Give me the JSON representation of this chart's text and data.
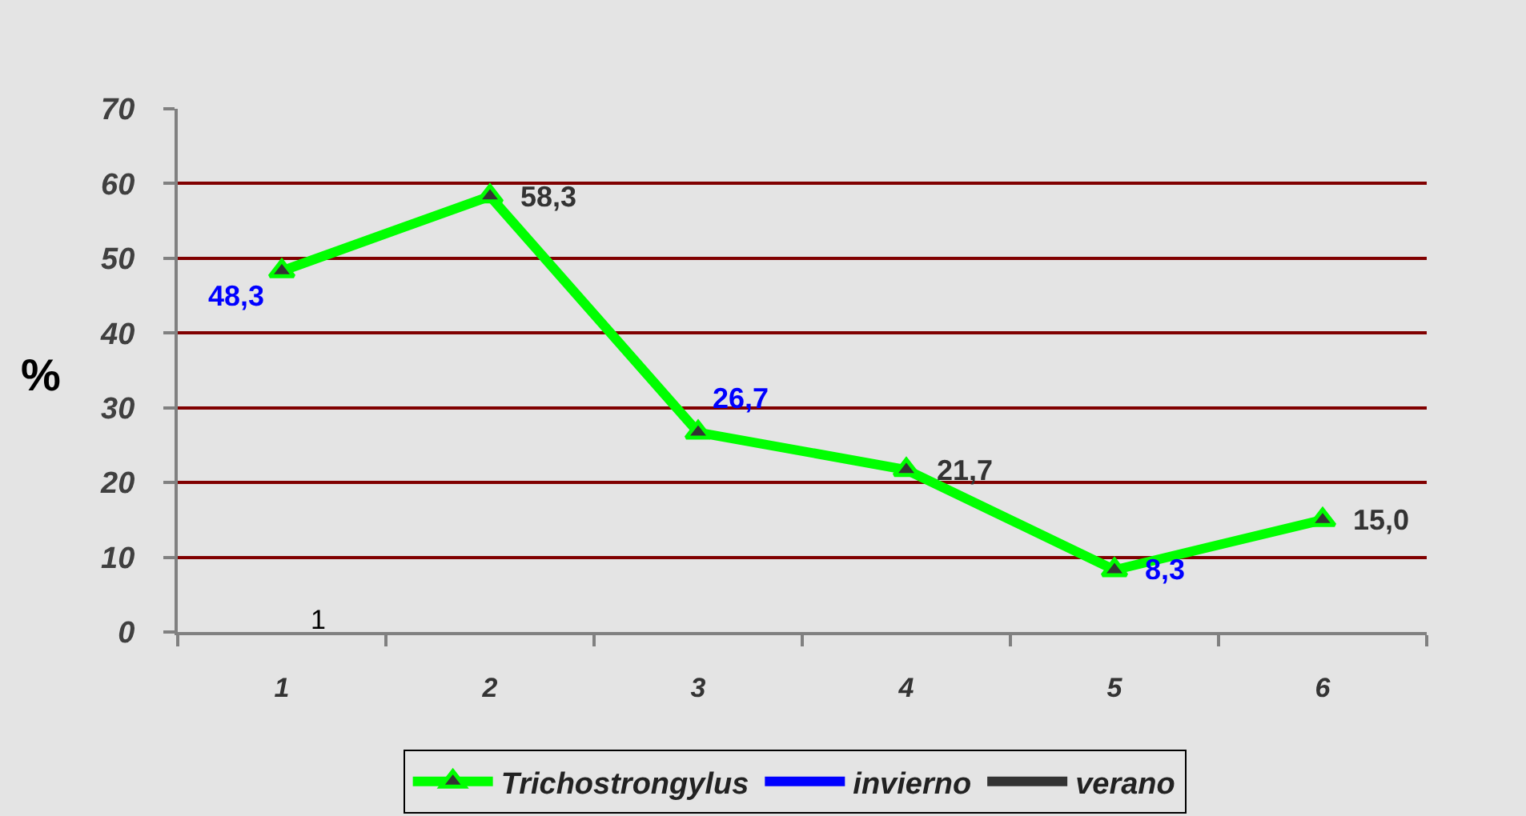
{
  "chart_data": {
    "type": "line",
    "ylabel": "%",
    "categories": [
      "1",
      "2",
      "3",
      "4",
      "5",
      "6"
    ],
    "series": [
      {
        "name": "Trichostrongylus",
        "color": "#00ff00",
        "values": [
          48.3,
          58.3,
          26.7,
          21.7,
          8.3,
          15.0
        ],
        "marker": "triangle",
        "value_labels": [
          "48,3",
          "58,3",
          "26,7",
          "21,7",
          "8,3",
          "15,0"
        ]
      },
      {
        "name": "invierno",
        "color": "#0000ff",
        "values": [
          null,
          null,
          null,
          null,
          null,
          null
        ]
      },
      {
        "name": "verano",
        "color": "#333333",
        "values": [
          null,
          null,
          null,
          null,
          null,
          null
        ]
      }
    ],
    "ylim": [
      0,
      70
    ],
    "yticks": [
      0,
      10,
      20,
      30,
      40,
      50,
      60,
      70
    ],
    "grid": "y",
    "legend": "bottom",
    "marker": "none",
    "line_style": "solid",
    "annotations": [
      "1"
    ]
  }
}
